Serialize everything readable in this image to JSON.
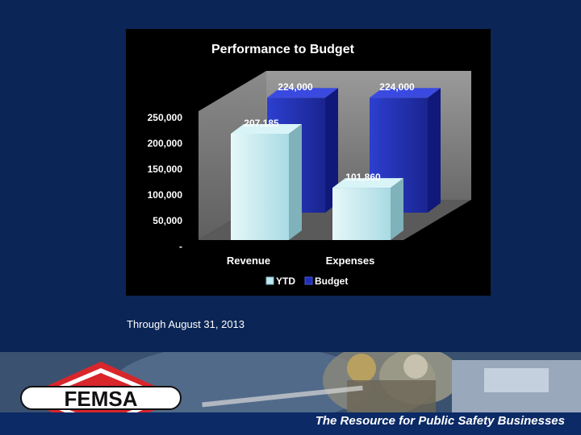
{
  "caption": "Through August 31, 2013",
  "tagline": "The Resource for Public Safety Businesses",
  "logo_text": "FEMSA",
  "colors": {
    "background": "#0a2556",
    "ytd": "#bfe8ee",
    "budget": "#1f2fb8",
    "logo_red": "#d8262b"
  },
  "chart_data": {
    "type": "bar",
    "title": "Performance to Budget",
    "categories": [
      "Revenue",
      "Expenses"
    ],
    "series": [
      {
        "name": "YTD",
        "values": [
          207185,
          101860
        ],
        "labels": [
          "207,185",
          "101,860"
        ]
      },
      {
        "name": "Budget",
        "values": [
          224000,
          224000
        ],
        "labels": [
          "224,000",
          "224,000"
        ]
      }
    ],
    "yticks": [
      "-",
      "50,000",
      "100,000",
      "150,000",
      "200,000",
      "250,000"
    ],
    "ylim": [
      0,
      250000
    ],
    "grid": false,
    "legend": "bottom",
    "three_d": true
  }
}
